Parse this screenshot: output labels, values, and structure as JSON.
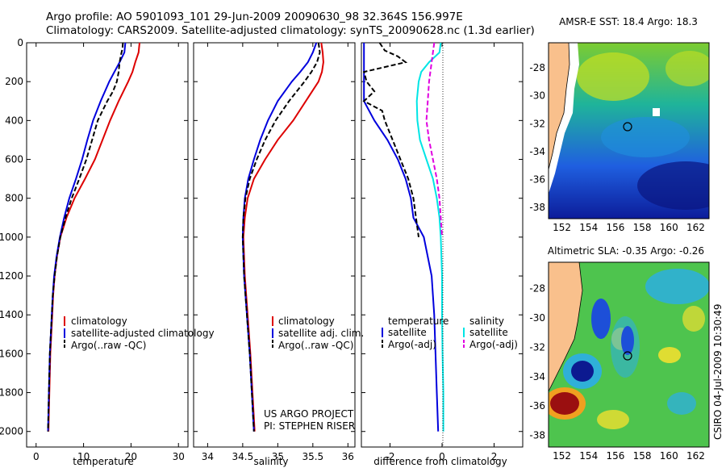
{
  "title_line1": "Argo profile: AO 5901093_101 29-Jun-2009 20090630_98 32.364S 156.997E",
  "title_line2": "Climatology: CARS2009. Satellite-adjusted climatology: synTS_20090628.nc (1.3d earlier)",
  "colors": {
    "climatology": "#dd0000",
    "satellite": "#0000dd",
    "argo": "#000000",
    "satellite_sal": "#00e5e5",
    "argo_sal": "#e000e0",
    "land": "#f9c08c"
  },
  "chart_data": [
    {
      "type": "line",
      "xlabel": "temperature",
      "ylabel": "",
      "xlim": [
        -2,
        32
      ],
      "ylim": [
        2080,
        0
      ],
      "x_ticks": [
        "0",
        "10",
        "20",
        "30"
      ],
      "y_ticks": [
        "0",
        "200",
        "400",
        "600",
        "800",
        "1000",
        "1200",
        "1400",
        "1600",
        "1800",
        "2000"
      ],
      "series": [
        {
          "name": "climatology",
          "depth": [
            0,
            50,
            100,
            150,
            200,
            300,
            400,
            500,
            600,
            700,
            800,
            900,
            1000,
            1100,
            1200,
            1300,
            1400,
            1500,
            1600,
            1700,
            1800,
            1900,
            2000
          ],
          "values": [
            21.8,
            21.6,
            20.9,
            20.3,
            19.4,
            17.4,
            15.6,
            14.0,
            12.4,
            10.3,
            8.1,
            6.4,
            5.1,
            4.4,
            3.9,
            3.6,
            3.4,
            3.2,
            3.0,
            2.9,
            2.8,
            2.7,
            2.6
          ]
        },
        {
          "name": "satellite-adjusted climatology",
          "depth": [
            0,
            50,
            100,
            150,
            200,
            300,
            400,
            500,
            600,
            700,
            800,
            900,
            1000,
            1100,
            1200,
            1300,
            1400,
            1500,
            1600,
            1700,
            1800,
            1900,
            2000
          ],
          "values": [
            18.8,
            18.6,
            17.6,
            16.5,
            15.4,
            13.6,
            12.0,
            10.8,
            9.7,
            8.4,
            7.0,
            5.9,
            5.0,
            4.3,
            3.8,
            3.5,
            3.3,
            3.1,
            2.9,
            2.8,
            2.7,
            2.6,
            2.5
          ]
        },
        {
          "name": "Argo(..raw -QC)",
          "depth": [
            0,
            30,
            60,
            100,
            150,
            200,
            250,
            300,
            400,
            500,
            600,
            700,
            800,
            900,
            1000,
            1100,
            1200,
            1300,
            1400,
            1500,
            1600,
            1700,
            1800,
            1900,
            2000
          ],
          "values": [
            18.3,
            18.2,
            17.9,
            17.6,
            17.4,
            17.0,
            16.2,
            15.0,
            13.0,
            11.8,
            10.6,
            9.1,
            7.5,
            6.2,
            5.1,
            4.4,
            3.9,
            3.5,
            3.3,
            3.1,
            2.9,
            2.8,
            2.7,
            2.6,
            2.5
          ]
        }
      ],
      "legend": [
        "climatology",
        "satellite-adjusted climatology",
        "Argo(..raw -QC)"
      ]
    },
    {
      "type": "line",
      "xlabel": "salinity",
      "ylabel": "",
      "xlim": [
        33.8,
        36.1
      ],
      "ylim": [
        2080,
        0
      ],
      "x_ticks": [
        "34",
        "34.5",
        "35",
        "35.5",
        "36"
      ],
      "series": [
        {
          "name": "climatology",
          "depth": [
            0,
            50,
            100,
            150,
            200,
            300,
            400,
            500,
            600,
            700,
            800,
            900,
            1000,
            1200,
            1400,
            1600,
            1800,
            2000
          ],
          "values": [
            35.62,
            35.64,
            35.65,
            35.63,
            35.58,
            35.4,
            35.22,
            35.0,
            34.82,
            34.66,
            34.57,
            34.53,
            34.51,
            34.53,
            34.57,
            34.61,
            34.64,
            34.67
          ]
        },
        {
          "name": "satellite adj. clim.",
          "depth": [
            0,
            50,
            100,
            150,
            200,
            300,
            400,
            500,
            600,
            700,
            800,
            900,
            1000,
            1200,
            1400,
            1600,
            1800,
            2000
          ],
          "values": [
            35.55,
            35.5,
            35.43,
            35.32,
            35.2,
            35.0,
            34.86,
            34.75,
            34.66,
            34.58,
            34.53,
            34.51,
            34.5,
            34.52,
            34.56,
            34.6,
            34.63,
            34.66
          ]
        },
        {
          "name": "Argo(..raw -QC)",
          "depth": [
            0,
            50,
            100,
            150,
            200,
            300,
            400,
            500,
            600,
            700,
            800,
            900,
            1000,
            1200,
            1400,
            1600,
            1800,
            2000
          ],
          "values": [
            35.58,
            35.6,
            35.56,
            35.48,
            35.38,
            35.16,
            34.97,
            34.82,
            34.7,
            34.6,
            34.54,
            34.51,
            34.5,
            34.52,
            34.56,
            34.6,
            34.63,
            34.66
          ]
        }
      ],
      "legend": [
        "climatology",
        "satellite adj. clim.",
        "Argo(..raw -QC)"
      ],
      "annotation": [
        "US ARGO PROJECT",
        "PI: STEPHEN RISER"
      ]
    },
    {
      "type": "line",
      "xlabel": "difference from climatology",
      "ylabel": "",
      "xlim": [
        -3.1,
        3.1
      ],
      "ylim": [
        2080,
        0
      ],
      "x_ticks": [
        "-2",
        "0",
        "2"
      ],
      "series": [
        {
          "name": "temperature satellite",
          "depth": [
            0,
            150,
            300,
            400,
            500,
            600,
            700,
            800,
            900,
            1000,
            1200,
            1400,
            1600,
            1800,
            2000
          ],
          "values": [
            -3.0,
            -3.0,
            -3.0,
            -2.6,
            -2.1,
            -1.7,
            -1.4,
            -1.2,
            -1.1,
            -0.7,
            -0.4,
            -0.3,
            -0.25,
            -0.2,
            -0.15
          ]
        },
        {
          "name": "temperature Argo(-adj)",
          "depth": [
            0,
            40,
            70,
            100,
            150,
            200,
            250,
            300,
            350,
            400,
            500,
            600,
            700,
            800,
            900,
            1000
          ],
          "values": [
            -2.4,
            -2.2,
            -1.7,
            -1.4,
            -3.0,
            -2.9,
            -2.6,
            -3.0,
            -2.3,
            -2.2,
            -1.9,
            -1.6,
            -1.3,
            -1.1,
            -1.0,
            -0.9
          ]
        },
        {
          "name": "salinity satellite",
          "depth": [
            0,
            50,
            100,
            150,
            200,
            300,
            400,
            500,
            600,
            700,
            800,
            900,
            1000,
            1200,
            1400,
            1600,
            1800,
            2000
          ],
          "values": [
            -0.05,
            -0.1,
            -0.5,
            -0.8,
            -0.9,
            -0.97,
            -0.95,
            -0.85,
            -0.6,
            -0.35,
            -0.2,
            -0.1,
            -0.05,
            0.0,
            0.0,
            0.02,
            0.05,
            0.05
          ]
        },
        {
          "name": "salinity Argo(-adj)",
          "depth": [
            0,
            50,
            100,
            150,
            200,
            300,
            400,
            500,
            600,
            700,
            800,
            900,
            1000
          ],
          "values": [
            -0.3,
            -0.35,
            -0.4,
            -0.45,
            -0.5,
            -0.55,
            -0.6,
            -0.5,
            -0.35,
            -0.2,
            -0.1,
            -0.05,
            0.0
          ]
        }
      ],
      "legend_header": [
        "temperature",
        "salinity"
      ],
      "legend": [
        "satellite",
        "Argo(-adj)",
        "satellite",
        "Argo(-adj)"
      ]
    },
    {
      "type": "heatmap",
      "title": "AMSR-E SST: 18.4 Argo: 18.3",
      "x_ticks": [
        "152",
        "154",
        "156",
        "158",
        "160",
        "162"
      ],
      "y_ticks": [
        "-28",
        "-30",
        "-32",
        "-34",
        "-36",
        "-38"
      ],
      "xlim": [
        151,
        163
      ],
      "ylim": [
        -38.8,
        -26.2
      ],
      "float_position": {
        "lon": 156.997,
        "lat": -32.364
      }
    },
    {
      "type": "heatmap",
      "title": "Altimetric SLA: -0.35 Argo: -0.26",
      "x_ticks": [
        "152",
        "154",
        "156",
        "158",
        "160",
        "162"
      ],
      "y_ticks": [
        "-28",
        "-30",
        "-32",
        "-34",
        "-36",
        "-38"
      ],
      "xlim": [
        151,
        163
      ],
      "ylim": [
        -38.8,
        -26.2
      ],
      "float_position": {
        "lon": 156.997,
        "lat": -32.364
      }
    }
  ],
  "side_label": "CSIRO 04-Jul-2009 10:30:49"
}
